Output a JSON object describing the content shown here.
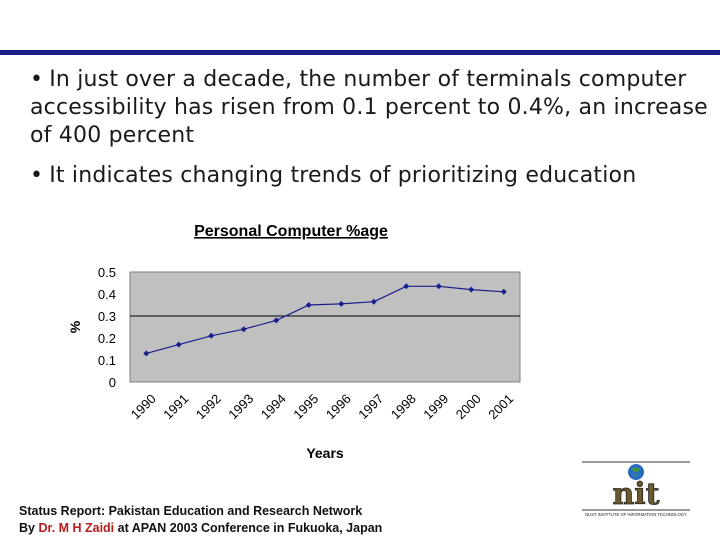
{
  "slide": {
    "bullets": [
      "In just over a decade, the number of terminals computer accessibility has risen from 0.1 percent to 0.4%, an increase of 400 percent",
      "It indicates changing trends of prioritizing education"
    ],
    "bullet_glyph": "•"
  },
  "chart_data": {
    "type": "line",
    "title": "Personal Computer %age",
    "xlabel": "Years",
    "ylabel": "%",
    "categories": [
      "1990",
      "1991",
      "1992",
      "1993",
      "1994",
      "1995",
      "1996",
      "1997",
      "1998",
      "1999",
      "2000",
      "2001"
    ],
    "series": [
      {
        "name": "Personal Computer %age",
        "values": [
          0.13,
          0.17,
          0.21,
          0.24,
          0.28,
          0.35,
          0.355,
          0.365,
          0.435,
          0.435,
          0.42,
          0.41
        ]
      }
    ],
    "ylim": [
      0,
      0.5
    ],
    "yticks": [
      "0",
      "0.1",
      "0.2",
      "0.3",
      "0.4",
      "0.5"
    ],
    "reference_line": 0.3,
    "grid": false,
    "colors": {
      "plot_bg": "#c0c0c0",
      "line": "#1a1f8c",
      "marker": "#1a1f8c"
    }
  },
  "footer": {
    "line1": "Status Report: Pakistan Education and Research Network",
    "line2_prefix": "By ",
    "line2_author": "Dr. M H Zaidi",
    "line2_suffix": " at APAN 2003 Conference in Fukuoka, Japan"
  },
  "logo": {
    "text": "nit",
    "tagline": "NUST INSTITUTE OF INFORMATION TECHNOLOGY"
  },
  "colors": {
    "accent": "#1a1f8c",
    "highlight": "#b71c1c"
  }
}
